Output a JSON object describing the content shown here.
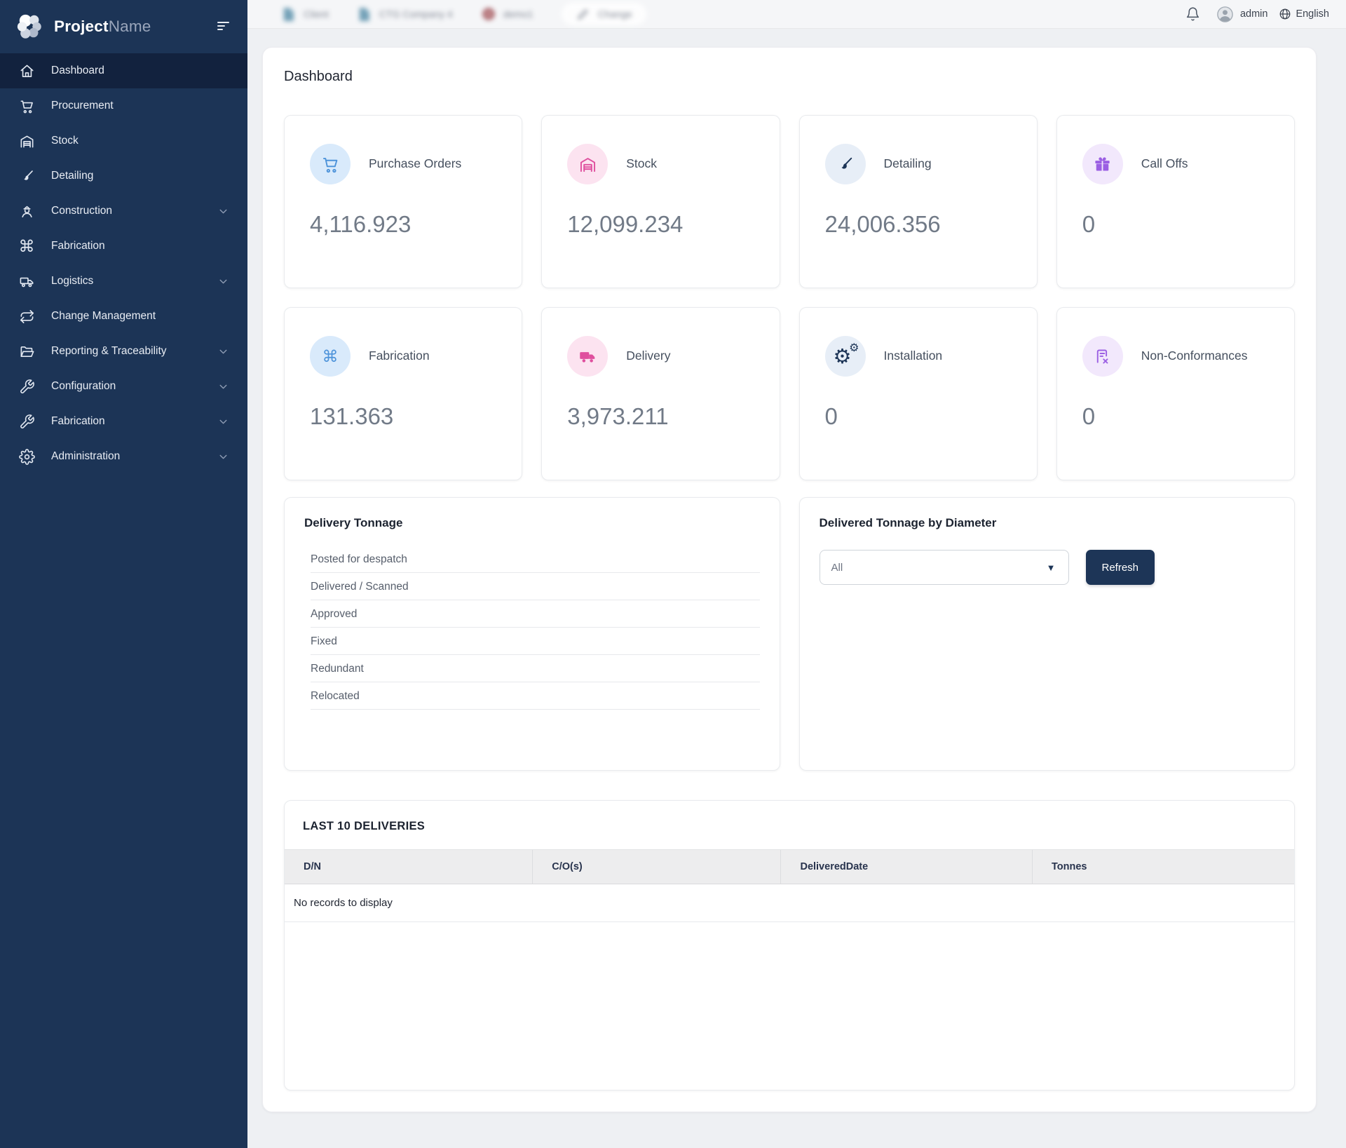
{
  "sidebar": {
    "brand": {
      "name_primary": "Project",
      "name_secondary": "Name"
    },
    "items": [
      {
        "label": "Dashboard",
        "icon": "home",
        "active": true,
        "expandable": false
      },
      {
        "label": "Procurement",
        "icon": "cart",
        "active": false,
        "expandable": false
      },
      {
        "label": "Stock",
        "icon": "warehouse",
        "active": false,
        "expandable": false
      },
      {
        "label": "Detailing",
        "icon": "brush",
        "active": false,
        "expandable": false
      },
      {
        "label": "Construction",
        "icon": "worker",
        "active": false,
        "expandable": true
      },
      {
        "label": "Fabrication",
        "icon": "command",
        "active": false,
        "expandable": false
      },
      {
        "label": "Logistics",
        "icon": "truck",
        "active": false,
        "expandable": true
      },
      {
        "label": "Change Management",
        "icon": "repeat",
        "active": false,
        "expandable": false
      },
      {
        "label": "Reporting & Traceability",
        "icon": "folder",
        "active": false,
        "expandable": true
      },
      {
        "label": "Configuration",
        "icon": "tools",
        "active": false,
        "expandable": true
      },
      {
        "label": "Fabrication",
        "icon": "tools",
        "active": false,
        "expandable": true
      },
      {
        "label": "Administration",
        "icon": "gear",
        "active": false,
        "expandable": true
      }
    ]
  },
  "topbar": {
    "blurred_items": [
      {
        "label": "Client",
        "icon": "doc-blue",
        "pill": false
      },
      {
        "label": "CTG Company 4",
        "icon": "doc-blue",
        "pill": false
      },
      {
        "label": "demo1",
        "icon": "badge-red",
        "pill": false
      },
      {
        "label": "Change",
        "icon": "pencil",
        "pill": true
      }
    ],
    "user": "admin",
    "language": "English"
  },
  "page": {
    "title": "Dashboard"
  },
  "stat_cards": [
    {
      "label": "Purchase Orders",
      "value": "4,116.923",
      "icon": "cart",
      "theme": "blue"
    },
    {
      "label": "Stock",
      "value": "12,099.234",
      "icon": "warehouse",
      "theme": "pink"
    },
    {
      "label": "Detailing",
      "value": "24,006.356",
      "icon": "brush",
      "theme": "navy"
    },
    {
      "label": "Call Offs",
      "value": "0",
      "icon": "gift",
      "theme": "purple"
    },
    {
      "label": "Fabrication",
      "value": "131.363",
      "icon": "command",
      "theme": "blue"
    },
    {
      "label": "Delivery",
      "value": "3,973.211",
      "icon": "truck-filled",
      "theme": "pink"
    },
    {
      "label": "Installation",
      "value": "0",
      "icon": "gears",
      "theme": "navy"
    },
    {
      "label": "Non-Conformances",
      "value": "0",
      "icon": "doc-x",
      "theme": "purple"
    }
  ],
  "delivery_tonnage": {
    "title": "Delivery Tonnage",
    "rows": [
      "Posted for despatch",
      "Delivered / Scanned",
      "Approved",
      "Fixed",
      "Redundant",
      "Relocated"
    ]
  },
  "tonnage_by_diameter": {
    "title": "Delivered Tonnage by Diameter",
    "filter_value": "All",
    "refresh_label": "Refresh"
  },
  "deliveries_table": {
    "title": "LAST 10 DELIVERIES",
    "columns": [
      "D/N",
      "C/O(s)",
      "DeliveredDate",
      "Tonnes"
    ],
    "empty_message": "No records to display"
  },
  "colors": {
    "sidebar_bg": "#1c3456",
    "sidebar_active_bg": "#12223e",
    "accent_navy": "#1d3557",
    "stat_blue": "#4d93da",
    "stat_pink": "#df4f9e",
    "stat_purple": "#9b5fe3",
    "table_header_bg": "#ededee"
  }
}
